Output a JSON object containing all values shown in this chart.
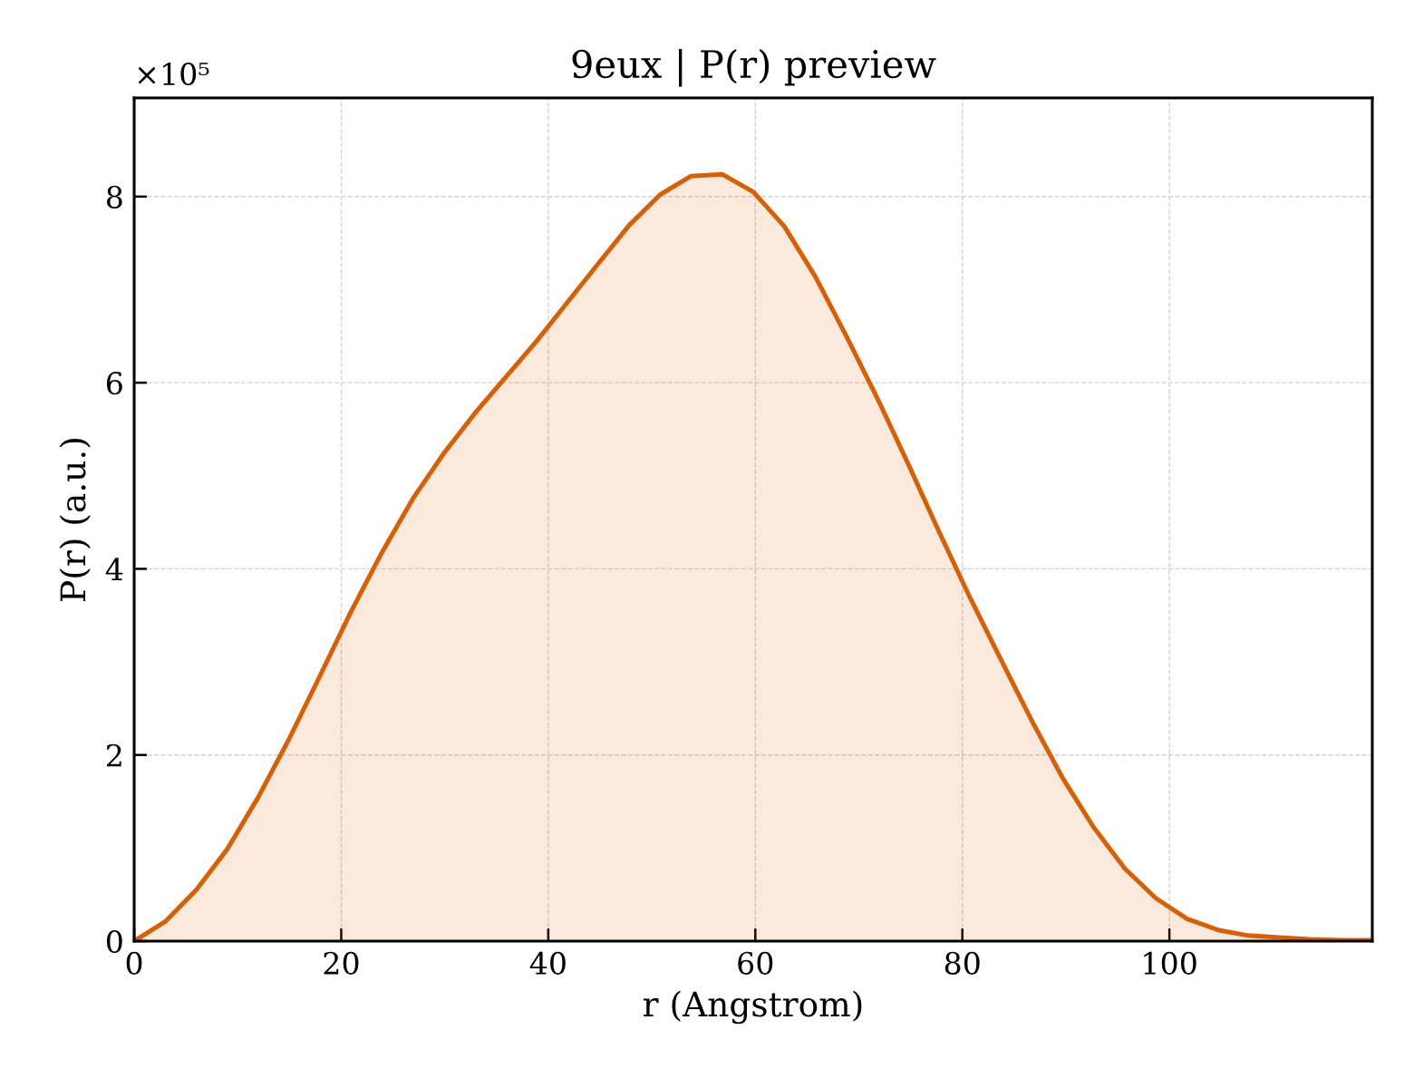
{
  "chart_data": {
    "type": "area",
    "title": "9eux | P(r) preview",
    "xlabel": "r (Angstrom)",
    "ylabel": "P(r) (a.u.)",
    "annotations": [
      "×10⁵"
    ],
    "x": [
      0,
      3.0,
      6.0,
      9.0,
      12.0,
      15.0,
      17.9,
      20.9,
      23.9,
      26.9,
      29.9,
      32.9,
      35.9,
      38.9,
      41.9,
      44.9,
      47.8,
      50.8,
      53.8,
      56.8,
      59.8,
      62.8,
      65.8,
      68.8,
      71.8,
      74.8,
      77.7,
      80.7,
      83.7,
      86.7,
      89.7,
      92.7,
      95.7,
      98.7,
      101.7,
      104.7,
      107.6,
      110.6,
      113.6,
      116.6,
      119.6
    ],
    "series": [
      {
        "color": "#d95f02",
        "values": [
          0,
          0.21,
          0.55,
          0.99,
          1.55,
          2.18,
          2.84,
          3.53,
          4.17,
          4.75,
          5.24,
          5.67,
          6.06,
          6.45,
          6.87,
          7.29,
          7.69,
          8.02,
          8.22,
          8.24,
          8.05,
          7.68,
          7.14,
          6.5,
          5.83,
          5.12,
          4.41,
          3.7,
          3.03,
          2.37,
          1.75,
          1.22,
          0.78,
          0.46,
          0.24,
          0.12,
          0.06,
          0.04,
          0.02,
          0.01,
          0.01
        ]
      }
    ],
    "xlim": [
      0,
      119.6
    ],
    "ylim": [
      0,
      9.06
    ],
    "xticks": [
      0,
      20,
      40,
      60,
      80,
      100
    ],
    "yticks": [
      0,
      2,
      4,
      6,
      8
    ],
    "grid": true
  }
}
